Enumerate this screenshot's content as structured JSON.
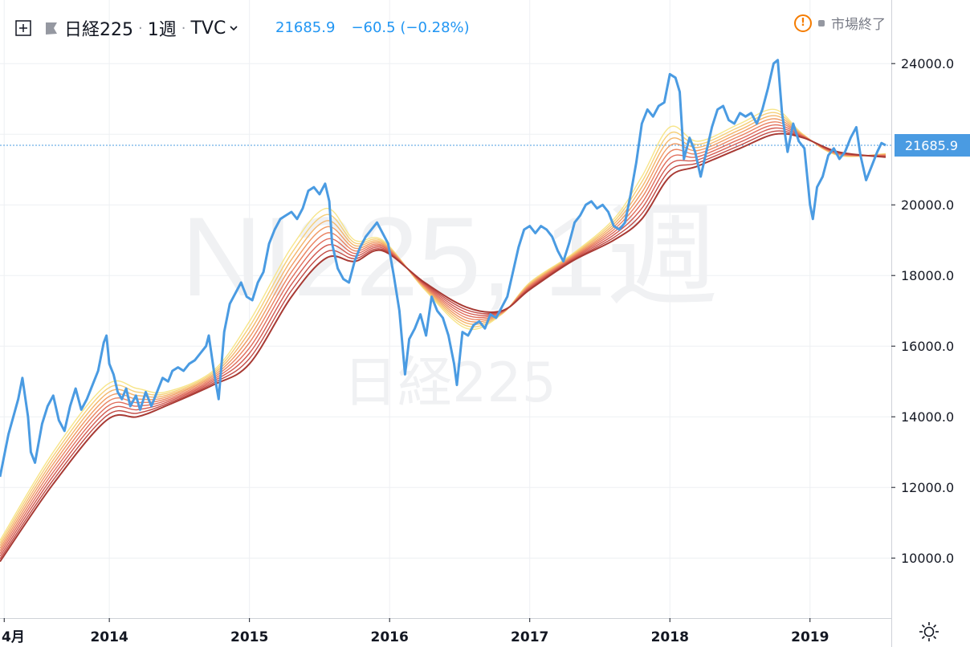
{
  "header": {
    "symbol_name": "日経225",
    "interval": "1週",
    "exchange": "TVC",
    "last_price": "21685.9",
    "change": "−60.5",
    "change_percent": "(−0.28%)",
    "market_status": "市場終了"
  },
  "watermark": {
    "line1": "NI225, 1週",
    "line2": "日経225"
  },
  "price_badge": "21685.9",
  "colors": {
    "price_line": "#4a9be2",
    "price_badge": "#4a9be2",
    "ribbon": [
      "#f7e58a",
      "#f6cf78",
      "#f4b56b",
      "#f09a63",
      "#ea8361",
      "#e06c5a",
      "#d35a50",
      "#c24a44",
      "#a83a34"
    ],
    "grid": "#eef0f3",
    "axis_text": "#131722"
  },
  "chart_data": {
    "type": "line",
    "title": "",
    "xlabel": "",
    "ylabel": "",
    "x_ticks": [
      "4月",
      "2014",
      "2015",
      "2016",
      "2017",
      "2018",
      "2019"
    ],
    "x_tick_values": [
      2013.25,
      2014.0,
      2015.0,
      2016.0,
      2017.0,
      2018.0,
      2019.0
    ],
    "xlim": [
      2013.22,
      2019.58
    ],
    "y_ticks": [
      "10000.0",
      "12000.0",
      "14000.0",
      "16000.0",
      "18000.0",
      "20000.0",
      "24000.0"
    ],
    "y_tick_values": [
      10000,
      12000,
      14000,
      16000,
      18000,
      20000,
      24000
    ],
    "hidden_y_tick": "22000.0",
    "ylim": [
      8300,
      25800
    ],
    "grid": true,
    "legend": "none",
    "current_price_line": 21685.9,
    "price_series": {
      "points": [
        [
          2013.22,
          12300
        ],
        [
          2013.28,
          13500
        ],
        [
          2013.35,
          14500
        ],
        [
          2013.38,
          15100
        ],
        [
          2013.42,
          14000
        ],
        [
          2013.44,
          13000
        ],
        [
          2013.47,
          12700
        ],
        [
          2013.52,
          13800
        ],
        [
          2013.56,
          14300
        ],
        [
          2013.6,
          14600
        ],
        [
          2013.64,
          13900
        ],
        [
          2013.68,
          13600
        ],
        [
          2013.72,
          14300
        ],
        [
          2013.76,
          14800
        ],
        [
          2013.8,
          14200
        ],
        [
          2013.84,
          14500
        ],
        [
          2013.88,
          14900
        ],
        [
          2013.92,
          15300
        ],
        [
          2013.96,
          16100
        ],
        [
          2013.98,
          16300
        ],
        [
          2014.0,
          15500
        ],
        [
          2014.03,
          15200
        ],
        [
          2014.06,
          14700
        ],
        [
          2014.09,
          14500
        ],
        [
          2014.12,
          14800
        ],
        [
          2014.15,
          14300
        ],
        [
          2014.19,
          14600
        ],
        [
          2014.22,
          14200
        ],
        [
          2014.26,
          14700
        ],
        [
          2014.3,
          14300
        ],
        [
          2014.34,
          14700
        ],
        [
          2014.38,
          15100
        ],
        [
          2014.42,
          15000
        ],
        [
          2014.45,
          15300
        ],
        [
          2014.49,
          15400
        ],
        [
          2014.53,
          15300
        ],
        [
          2014.57,
          15500
        ],
        [
          2014.61,
          15600
        ],
        [
          2014.65,
          15800
        ],
        [
          2014.69,
          16000
        ],
        [
          2014.71,
          16300
        ],
        [
          2014.75,
          15200
        ],
        [
          2014.78,
          14500
        ],
        [
          2014.82,
          16400
        ],
        [
          2014.86,
          17200
        ],
        [
          2014.9,
          17500
        ],
        [
          2014.94,
          17800
        ],
        [
          2014.98,
          17400
        ],
        [
          2015.02,
          17300
        ],
        [
          2015.06,
          17800
        ],
        [
          2015.1,
          18100
        ],
        [
          2015.14,
          18900
        ],
        [
          2015.18,
          19300
        ],
        [
          2015.22,
          19600
        ],
        [
          2015.26,
          19700
        ],
        [
          2015.3,
          19800
        ],
        [
          2015.34,
          19600
        ],
        [
          2015.38,
          19900
        ],
        [
          2015.42,
          20400
        ],
        [
          2015.46,
          20500
        ],
        [
          2015.5,
          20300
        ],
        [
          2015.54,
          20600
        ],
        [
          2015.57,
          20100
        ],
        [
          2015.59,
          18900
        ],
        [
          2015.63,
          18200
        ],
        [
          2015.67,
          17900
        ],
        [
          2015.71,
          17800
        ],
        [
          2015.75,
          18400
        ],
        [
          2015.79,
          18800
        ],
        [
          2015.83,
          19100
        ],
        [
          2015.87,
          19300
        ],
        [
          2015.91,
          19500
        ],
        [
          2015.95,
          19200
        ],
        [
          2015.99,
          18900
        ],
        [
          2016.03,
          18000
        ],
        [
          2016.07,
          17000
        ],
        [
          2016.11,
          15200
        ],
        [
          2016.14,
          16200
        ],
        [
          2016.18,
          16500
        ],
        [
          2016.22,
          16900
        ],
        [
          2016.26,
          16300
        ],
        [
          2016.3,
          17400
        ],
        [
          2016.34,
          17000
        ],
        [
          2016.38,
          16800
        ],
        [
          2016.42,
          16300
        ],
        [
          2016.46,
          15500
        ],
        [
          2016.48,
          14900
        ],
        [
          2016.52,
          16400
        ],
        [
          2016.56,
          16300
        ],
        [
          2016.6,
          16600
        ],
        [
          2016.64,
          16700
        ],
        [
          2016.68,
          16500
        ],
        [
          2016.72,
          16900
        ],
        [
          2016.76,
          16800
        ],
        [
          2016.8,
          17100
        ],
        [
          2016.84,
          17400
        ],
        [
          2016.88,
          18100
        ],
        [
          2016.92,
          18800
        ],
        [
          2016.96,
          19300
        ],
        [
          2017.0,
          19400
        ],
        [
          2017.04,
          19200
        ],
        [
          2017.08,
          19400
        ],
        [
          2017.12,
          19300
        ],
        [
          2017.16,
          19100
        ],
        [
          2017.2,
          18700
        ],
        [
          2017.24,
          18400
        ],
        [
          2017.28,
          18900
        ],
        [
          2017.32,
          19500
        ],
        [
          2017.36,
          19700
        ],
        [
          2017.4,
          20000
        ],
        [
          2017.44,
          20100
        ],
        [
          2017.48,
          19900
        ],
        [
          2017.52,
          20000
        ],
        [
          2017.56,
          19800
        ],
        [
          2017.6,
          19400
        ],
        [
          2017.64,
          19300
        ],
        [
          2017.68,
          19500
        ],
        [
          2017.72,
          20300
        ],
        [
          2017.76,
          21200
        ],
        [
          2017.8,
          22300
        ],
        [
          2017.84,
          22700
        ],
        [
          2017.88,
          22500
        ],
        [
          2017.92,
          22800
        ],
        [
          2017.96,
          22900
        ],
        [
          2018.0,
          23700
        ],
        [
          2018.04,
          23600
        ],
        [
          2018.07,
          23200
        ],
        [
          2018.1,
          21300
        ],
        [
          2018.14,
          21900
        ],
        [
          2018.18,
          21500
        ],
        [
          2018.22,
          20800
        ],
        [
          2018.26,
          21500
        ],
        [
          2018.3,
          22200
        ],
        [
          2018.34,
          22700
        ],
        [
          2018.38,
          22800
        ],
        [
          2018.42,
          22400
        ],
        [
          2018.46,
          22300
        ],
        [
          2018.5,
          22600
        ],
        [
          2018.54,
          22500
        ],
        [
          2018.58,
          22600
        ],
        [
          2018.62,
          22300
        ],
        [
          2018.66,
          22700
        ],
        [
          2018.7,
          23300
        ],
        [
          2018.74,
          24000
        ],
        [
          2018.77,
          24100
        ],
        [
          2018.8,
          22600
        ],
        [
          2018.84,
          21500
        ],
        [
          2018.88,
          22300
        ],
        [
          2018.92,
          21800
        ],
        [
          2018.96,
          21600
        ],
        [
          2019.0,
          20000
        ],
        [
          2019.02,
          19600
        ],
        [
          2019.05,
          20500
        ],
        [
          2019.09,
          20800
        ],
        [
          2019.13,
          21400
        ],
        [
          2019.17,
          21600
        ],
        [
          2019.21,
          21300
        ],
        [
          2019.25,
          21500
        ],
        [
          2019.29,
          21900
        ],
        [
          2019.33,
          22200
        ],
        [
          2019.36,
          21400
        ],
        [
          2019.4,
          20700
        ],
        [
          2019.44,
          21100
        ],
        [
          2019.48,
          21500
        ],
        [
          2019.51,
          21750
        ],
        [
          2019.54,
          21685.9
        ]
      ]
    },
    "moving_average_ribbon": {
      "count": 9,
      "anchors": [
        [
          2013.22,
          10500,
          9900
        ],
        [
          2013.6,
          13000,
          12100
        ],
        [
          2013.98,
          14900,
          13900
        ],
        [
          2014.2,
          14800,
          14000
        ],
        [
          2014.4,
          14700,
          14300
        ],
        [
          2014.74,
          15300,
          14900
        ],
        [
          2015.0,
          16700,
          15500
        ],
        [
          2015.3,
          18800,
          17400
        ],
        [
          2015.55,
          19900,
          18500
        ],
        [
          2015.75,
          19000,
          18400
        ],
        [
          2015.95,
          19000,
          18700
        ],
        [
          2016.25,
          17600,
          17800
        ],
        [
          2016.55,
          16500,
          17100
        ],
        [
          2016.8,
          16900,
          17000
        ],
        [
          2017.0,
          17800,
          17600
        ],
        [
          2017.3,
          18600,
          18400
        ],
        [
          2017.6,
          19600,
          19000
        ],
        [
          2017.8,
          20800,
          19600
        ],
        [
          2018.0,
          22200,
          20800
        ],
        [
          2018.2,
          21800,
          21100
        ],
        [
          2018.5,
          22300,
          21600
        ],
        [
          2018.75,
          22700,
          22000
        ],
        [
          2018.95,
          22000,
          21900
        ],
        [
          2019.2,
          21400,
          21500
        ],
        [
          2019.54,
          21450,
          21350
        ]
      ]
    }
  }
}
